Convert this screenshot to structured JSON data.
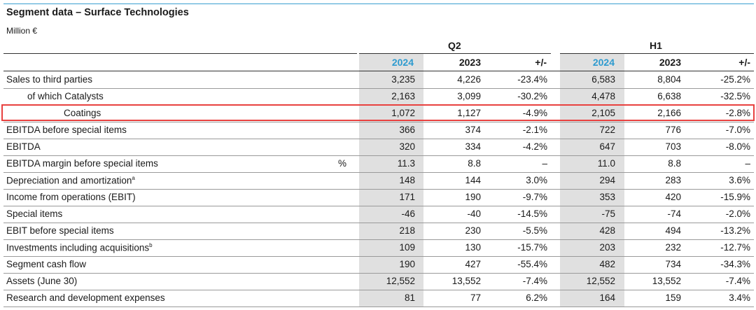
{
  "title": "Segment data – Surface Technologies",
  "unit": "Million €",
  "groups": {
    "q2": "Q2",
    "h1": "H1"
  },
  "columns": {
    "y2024": "2024",
    "y2023": "2023",
    "change": "+/-"
  },
  "accent_color": "#2e9bcf",
  "highlight_color": "#e8413f",
  "rows": [
    {
      "label": "Sales to third parties",
      "indent": 0,
      "unit": "",
      "q2_2024": "3,235",
      "q2_2023": "4,226",
      "q2_chg": "-23.4%",
      "h1_2024": "6,583",
      "h1_2023": "8,804",
      "h1_chg": "-25.2%"
    },
    {
      "label": "of which Catalysts",
      "indent": 1,
      "unit": "",
      "q2_2024": "2,163",
      "q2_2023": "3,099",
      "q2_chg": "-30.2%",
      "h1_2024": "4,478",
      "h1_2023": "6,638",
      "h1_chg": "-32.5%"
    },
    {
      "label": "Coatings",
      "indent": 2,
      "unit": "",
      "q2_2024": "1,072",
      "q2_2023": "1,127",
      "q2_chg": "-4.9%",
      "h1_2024": "2,105",
      "h1_2023": "2,166",
      "h1_chg": "-2.8%"
    },
    {
      "label": "EBITDA before special items",
      "indent": 0,
      "unit": "",
      "q2_2024": "366",
      "q2_2023": "374",
      "q2_chg": "-2.1%",
      "h1_2024": "722",
      "h1_2023": "776",
      "h1_chg": "-7.0%"
    },
    {
      "label": "EBITDA",
      "indent": 0,
      "unit": "",
      "q2_2024": "320",
      "q2_2023": "334",
      "q2_chg": "-4.2%",
      "h1_2024": "647",
      "h1_2023": "703",
      "h1_chg": "-8.0%"
    },
    {
      "label": "EBITDA margin before special items",
      "indent": 0,
      "unit": "%",
      "q2_2024": "11.3",
      "q2_2023": "8.8",
      "q2_chg": "–",
      "h1_2024": "11.0",
      "h1_2023": "8.8",
      "h1_chg": "–"
    },
    {
      "label": "Depreciation and amortization",
      "sup": "a",
      "indent": 0,
      "unit": "",
      "q2_2024": "148",
      "q2_2023": "144",
      "q2_chg": "3.0%",
      "h1_2024": "294",
      "h1_2023": "283",
      "h1_chg": "3.6%"
    },
    {
      "label": "Income from operations (EBIT)",
      "indent": 0,
      "unit": "",
      "q2_2024": "171",
      "q2_2023": "190",
      "q2_chg": "-9.7%",
      "h1_2024": "353",
      "h1_2023": "420",
      "h1_chg": "-15.9%"
    },
    {
      "label": "Special items",
      "indent": 0,
      "unit": "",
      "q2_2024": "-46",
      "q2_2023": "-40",
      "q2_chg": "-14.5%",
      "h1_2024": "-75",
      "h1_2023": "-74",
      "h1_chg": "-2.0%"
    },
    {
      "label": "EBIT before special items",
      "indent": 0,
      "unit": "",
      "q2_2024": "218",
      "q2_2023": "230",
      "q2_chg": "-5.5%",
      "h1_2024": "428",
      "h1_2023": "494",
      "h1_chg": "-13.2%"
    },
    {
      "label": "Investments including acquisitions",
      "sup": "b",
      "indent": 0,
      "unit": "",
      "q2_2024": "109",
      "q2_2023": "130",
      "q2_chg": "-15.7%",
      "h1_2024": "203",
      "h1_2023": "232",
      "h1_chg": "-12.7%"
    },
    {
      "label": "Segment cash flow",
      "indent": 0,
      "unit": "",
      "q2_2024": "190",
      "q2_2023": "427",
      "q2_chg": "-55.4%",
      "h1_2024": "482",
      "h1_2023": "734",
      "h1_chg": "-34.3%"
    },
    {
      "label": "Assets (June 30)",
      "indent": 0,
      "unit": "",
      "q2_2024": "12,552",
      "q2_2023": "13,552",
      "q2_chg": "-7.4%",
      "h1_2024": "12,552",
      "h1_2023": "13,552",
      "h1_chg": "-7.4%"
    },
    {
      "label": "Research and development expenses",
      "indent": 0,
      "unit": "",
      "q2_2024": "81",
      "q2_2023": "77",
      "q2_chg": "6.2%",
      "h1_2024": "164",
      "h1_2023": "159",
      "h1_chg": "3.4%"
    }
  ]
}
